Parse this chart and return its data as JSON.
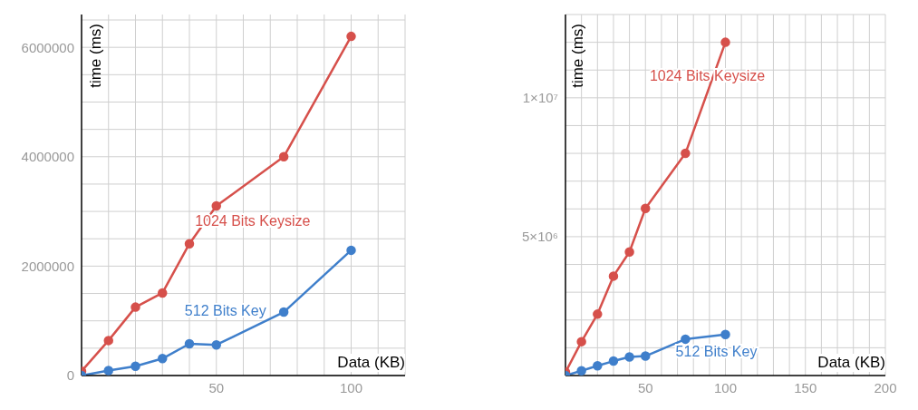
{
  "chart_data": [
    {
      "type": "line",
      "xlabel": "Data (KB)",
      "ylabel": "time (ms)",
      "x": [
        0,
        10,
        20,
        30,
        40,
        50,
        75,
        100
      ],
      "xlim": [
        0,
        120
      ],
      "ylim": [
        0,
        6600000
      ],
      "xticks": [
        {
          "value": 10,
          "label": null
        },
        {
          "value": 20,
          "label": null
        },
        {
          "value": 30,
          "label": null
        },
        {
          "value": 40,
          "label": null
        },
        50,
        {
          "value": 60,
          "label": null
        },
        {
          "value": 70,
          "label": null
        },
        {
          "value": 80,
          "label": null
        },
        {
          "value": 90,
          "label": null
        },
        100,
        {
          "value": 110,
          "label": null
        },
        {
          "value": 120,
          "label": null
        }
      ],
      "yticks": [
        0,
        {
          "value": 500000,
          "label": null
        },
        {
          "value": 1000000,
          "label": null
        },
        {
          "value": 1500000,
          "label": null
        },
        2000000,
        {
          "value": 2500000,
          "label": null
        },
        {
          "value": 3000000,
          "label": null
        },
        {
          "value": 3500000,
          "label": null
        },
        4000000,
        {
          "value": 4500000,
          "label": null
        },
        {
          "value": 5000000,
          "label": null
        },
        {
          "value": 5500000,
          "label": null
        },
        6000000,
        {
          "value": 6500000,
          "label": null
        }
      ],
      "grid": true,
      "marker": "circle",
      "line_style": "solid",
      "series": [
        {
          "name": "1024 Bits Keysize",
          "color": "#d6504b",
          "values": [
            80000,
            640000,
            1250000,
            1510000,
            2410000,
            3100000,
            4000000,
            6200000
          ]
        },
        {
          "name": "512 Bits Key",
          "color": "#3f7fcb",
          "values": [
            0,
            90000,
            170000,
            310000,
            580000,
            560000,
            1160000,
            2290000
          ]
        }
      ]
    },
    {
      "type": "line",
      "xlabel": "Data (KB)",
      "ylabel": "time (ms)",
      "x": [
        0,
        10,
        20,
        30,
        40,
        50,
        75,
        100
      ],
      "xlim": [
        0,
        200
      ],
      "ylim": [
        0,
        13000000
      ],
      "xticks": [
        {
          "value": 10,
          "label": null
        },
        {
          "value": 20,
          "label": null
        },
        {
          "value": 30,
          "label": null
        },
        {
          "value": 40,
          "label": null
        },
        50,
        {
          "value": 60,
          "label": null
        },
        {
          "value": 70,
          "label": null
        },
        {
          "value": 80,
          "label": null
        },
        {
          "value": 90,
          "label": null
        },
        100,
        {
          "value": 110,
          "label": null
        },
        {
          "value": 120,
          "label": null
        },
        {
          "value": 130,
          "label": null
        },
        {
          "value": 140,
          "label": null
        },
        150,
        {
          "value": 160,
          "label": null
        },
        {
          "value": 170,
          "label": null
        },
        {
          "value": 180,
          "label": null
        },
        {
          "value": 190,
          "label": null
        },
        200
      ],
      "yticks": [
        {
          "value": 1000000,
          "label": null
        },
        {
          "value": 2000000,
          "label": null
        },
        {
          "value": 3000000,
          "label": null
        },
        {
          "value": 4000000,
          "label": null
        },
        {
          "value": 5000000,
          "label": "5×10⁶"
        },
        {
          "value": 6000000,
          "label": null
        },
        {
          "value": 7000000,
          "label": null
        },
        {
          "value": 8000000,
          "label": null
        },
        {
          "value": 9000000,
          "label": null
        },
        {
          "value": 10000000,
          "label": "1×10⁷"
        },
        {
          "value": 11000000,
          "label": null
        },
        {
          "value": 12000000,
          "label": null
        },
        {
          "value": 13000000,
          "label": null
        }
      ],
      "grid": true,
      "marker": "circle",
      "line_style": "solid",
      "series": [
        {
          "name": "1024 Bits Keysize",
          "color": "#d6504b",
          "values": [
            120000,
            1220000,
            2210000,
            3580000,
            4450000,
            6020000,
            8000000,
            12000000
          ]
        },
        {
          "name": "512 Bits Key",
          "color": "#3f7fcb",
          "values": [
            0,
            170000,
            350000,
            520000,
            670000,
            700000,
            1310000,
            1480000
          ]
        }
      ]
    }
  ]
}
